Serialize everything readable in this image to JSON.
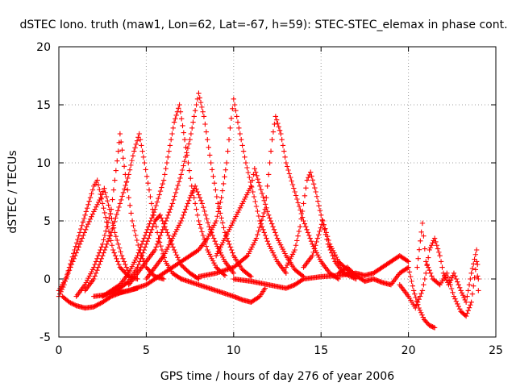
{
  "chart_data": {
    "type": "scatter",
    "title": "dSTEC Iono. truth (maw1, Lon=62, Lat=-67, h=59): STEC-STEC_elemax in phase cont.",
    "xlabel": "GPS time / hours of day 276 of year 2006",
    "ylabel": "dSTEC  / TECUs",
    "xlim": [
      0,
      25
    ],
    "ylim": [
      -5,
      20
    ],
    "xticks": [
      0,
      5,
      10,
      15,
      20,
      25
    ],
    "yticks": [
      -5,
      0,
      5,
      10,
      15,
      20
    ],
    "grid": true,
    "marker": "plus",
    "color": "#ff0000",
    "series": [
      {
        "values": [
          [
            0.0,
            -1.5
          ],
          [
            0.3,
            -0.5
          ],
          [
            0.6,
            1.0
          ],
          [
            0.9,
            2.5
          ],
          [
            1.2,
            4.0
          ],
          [
            1.5,
            5.5
          ],
          [
            1.8,
            7.0
          ],
          [
            2.0,
            8.0
          ],
          [
            2.2,
            8.5
          ],
          [
            2.5,
            6.5
          ],
          [
            2.8,
            4.5
          ],
          [
            3.1,
            2.5
          ],
          [
            3.5,
            1.0
          ],
          [
            4.0,
            0.2
          ],
          [
            4.5,
            0.0
          ]
        ]
      },
      {
        "values": [
          [
            0.0,
            -1.0
          ],
          [
            0.4,
            0.0
          ],
          [
            0.8,
            1.5
          ],
          [
            1.2,
            3.0
          ],
          [
            1.6,
            4.5
          ],
          [
            2.0,
            5.8
          ],
          [
            2.4,
            7.0
          ],
          [
            2.6,
            7.8
          ],
          [
            2.9,
            6.0
          ],
          [
            3.2,
            4.0
          ],
          [
            3.6,
            2.0
          ],
          [
            4.0,
            0.5
          ]
        ]
      },
      {
        "values": [
          [
            0.2,
            -1.5
          ],
          [
            0.6,
            -2.0
          ],
          [
            1.0,
            -2.3
          ],
          [
            1.5,
            -2.5
          ],
          [
            2.0,
            -2.4
          ],
          [
            2.5,
            -2.0
          ],
          [
            3.0,
            -1.5
          ],
          [
            3.5,
            -1.2
          ],
          [
            4.0,
            -1.0
          ],
          [
            4.5,
            -0.8
          ]
        ]
      },
      {
        "values": [
          [
            1.0,
            -1.5
          ],
          [
            1.5,
            -0.5
          ],
          [
            2.0,
            1.0
          ],
          [
            2.5,
            3.0
          ],
          [
            3.0,
            6.0
          ],
          [
            3.2,
            8.5
          ],
          [
            3.4,
            11.0
          ],
          [
            3.5,
            12.5
          ],
          [
            3.8,
            9.0
          ],
          [
            4.2,
            5.0
          ],
          [
            4.6,
            2.5
          ],
          [
            5.0,
            1.0
          ],
          [
            5.5,
            0.2
          ],
          [
            6.0,
            0.0
          ]
        ]
      },
      {
        "values": [
          [
            1.5,
            -1.0
          ],
          [
            2.0,
            0.0
          ],
          [
            2.5,
            2.0
          ],
          [
            3.0,
            4.0
          ],
          [
            3.5,
            6.5
          ],
          [
            4.0,
            9.0
          ],
          [
            4.3,
            11.0
          ],
          [
            4.6,
            12.5
          ],
          [
            4.9,
            10.0
          ],
          [
            5.3,
            6.5
          ],
          [
            5.7,
            3.5
          ],
          [
            6.1,
            1.5
          ],
          [
            6.5,
            0.5
          ],
          [
            7.0,
            0.0
          ]
        ]
      },
      {
        "values": [
          [
            2.5,
            -1.5
          ],
          [
            3.0,
            -1.0
          ],
          [
            3.5,
            -0.5
          ],
          [
            4.0,
            0.5
          ],
          [
            4.5,
            2.0
          ],
          [
            5.0,
            4.0
          ],
          [
            5.5,
            6.0
          ],
          [
            6.0,
            8.5
          ],
          [
            6.3,
            11.0
          ],
          [
            6.6,
            13.5
          ],
          [
            6.9,
            15.0
          ],
          [
            7.2,
            12.0
          ],
          [
            7.6,
            8.0
          ],
          [
            8.0,
            5.0
          ],
          [
            8.5,
            2.5
          ],
          [
            9.0,
            1.0
          ],
          [
            9.5,
            0.3
          ]
        ]
      },
      {
        "values": [
          [
            3.0,
            -1.2
          ],
          [
            3.5,
            -0.8
          ],
          [
            4.0,
            -0.2
          ],
          [
            4.5,
            1.0
          ],
          [
            5.0,
            3.0
          ],
          [
            5.5,
            5.0
          ],
          [
            5.8,
            5.5
          ],
          [
            6.2,
            4.0
          ],
          [
            6.6,
            2.5
          ],
          [
            7.0,
            1.2
          ],
          [
            7.5,
            0.5
          ],
          [
            8.0,
            0.0
          ]
        ]
      },
      {
        "values": [
          [
            4.0,
            -0.5
          ],
          [
            4.5,
            0.5
          ],
          [
            5.0,
            1.5
          ],
          [
            5.5,
            2.5
          ],
          [
            6.0,
            4.5
          ],
          [
            6.5,
            6.5
          ],
          [
            7.0,
            9.0
          ],
          [
            7.5,
            12.0
          ],
          [
            7.8,
            14.5
          ],
          [
            8.0,
            16.0
          ],
          [
            8.3,
            14.0
          ],
          [
            8.7,
            10.0
          ],
          [
            9.1,
            6.5
          ],
          [
            9.5,
            4.0
          ],
          [
            10.0,
            2.0
          ],
          [
            10.5,
            0.8
          ],
          [
            11.0,
            0.2
          ]
        ]
      },
      {
        "values": [
          [
            5.0,
            0.0
          ],
          [
            5.5,
            1.0
          ],
          [
            6.0,
            2.0
          ],
          [
            6.5,
            3.5
          ],
          [
            7.0,
            5.0
          ],
          [
            7.5,
            7.0
          ],
          [
            7.8,
            8.0
          ],
          [
            8.2,
            6.5
          ],
          [
            8.6,
            4.5
          ],
          [
            9.0,
            3.0
          ],
          [
            9.5,
            1.5
          ],
          [
            10.0,
            0.5
          ]
        ]
      },
      {
        "values": [
          [
            2.0,
            -1.5
          ],
          [
            3.0,
            -1.3
          ],
          [
            4.0,
            -1.0
          ],
          [
            5.0,
            -0.5
          ],
          [
            6.0,
            0.5
          ],
          [
            7.0,
            1.5
          ],
          [
            8.0,
            2.5
          ],
          [
            8.5,
            3.5
          ],
          [
            9.0,
            5.0
          ],
          [
            9.3,
            7.0
          ],
          [
            9.6,
            10.0
          ],
          [
            9.8,
            13.0
          ],
          [
            10.0,
            15.5
          ],
          [
            10.3,
            13.0
          ],
          [
            10.7,
            10.0
          ],
          [
            11.1,
            7.5
          ],
          [
            11.5,
            5.0
          ],
          [
            12.0,
            3.0
          ],
          [
            12.5,
            1.5
          ],
          [
            13.0,
            0.5
          ]
        ]
      },
      {
        "values": [
          [
            9.0,
            2.0
          ],
          [
            9.5,
            3.5
          ],
          [
            10.0,
            5.0
          ],
          [
            10.5,
            6.5
          ],
          [
            11.0,
            8.0
          ],
          [
            11.2,
            9.5
          ],
          [
            11.5,
            8.0
          ],
          [
            12.0,
            5.5
          ],
          [
            12.5,
            3.5
          ],
          [
            13.0,
            2.0
          ],
          [
            13.5,
            0.8
          ],
          [
            14.0,
            0.2
          ]
        ]
      },
      {
        "values": [
          [
            8.0,
            0.2
          ],
          [
            9.0,
            0.5
          ],
          [
            10.0,
            1.0
          ],
          [
            10.8,
            2.0
          ],
          [
            11.3,
            3.5
          ],
          [
            11.8,
            6.0
          ],
          [
            12.0,
            9.0
          ],
          [
            12.2,
            12.0
          ],
          [
            12.4,
            14.0
          ],
          [
            12.7,
            12.5
          ],
          [
            13.0,
            10.0
          ],
          [
            13.5,
            7.5
          ],
          [
            14.0,
            5.0
          ],
          [
            14.5,
            3.0
          ],
          [
            15.0,
            1.5
          ],
          [
            15.5,
            0.5
          ],
          [
            16.0,
            0.0
          ]
        ]
      },
      {
        "values": [
          [
            13.0,
            1.0
          ],
          [
            13.5,
            2.5
          ],
          [
            13.8,
            4.5
          ],
          [
            14.0,
            6.5
          ],
          [
            14.2,
            8.5
          ],
          [
            14.4,
            9.2
          ],
          [
            14.7,
            7.5
          ],
          [
            15.0,
            5.5
          ],
          [
            15.4,
            3.0
          ],
          [
            15.8,
            1.5
          ],
          [
            16.3,
            0.5
          ],
          [
            17.0,
            0.0
          ]
        ]
      },
      {
        "values": [
          [
            14.0,
            1.0
          ],
          [
            14.5,
            2.0
          ],
          [
            14.8,
            3.5
          ],
          [
            15.1,
            5.0
          ],
          [
            15.5,
            3.0
          ],
          [
            16.0,
            1.5
          ],
          [
            16.5,
            0.8
          ],
          [
            17.0,
            0.2
          ]
        ]
      },
      {
        "values": [
          [
            7.0,
            0.0
          ],
          [
            8.0,
            -0.5
          ],
          [
            9.0,
            -1.0
          ],
          [
            10.0,
            -1.5
          ],
          [
            10.5,
            -1.8
          ],
          [
            11.0,
            -2.0
          ],
          [
            11.5,
            -1.5
          ],
          [
            11.8,
            -0.8
          ]
        ]
      },
      {
        "values": [
          [
            10.0,
            0.0
          ],
          [
            11.0,
            -0.2
          ],
          [
            12.0,
            -0.5
          ],
          [
            13.0,
            -0.8
          ],
          [
            13.5,
            -0.5
          ],
          [
            14.0,
            0.0
          ],
          [
            15.0,
            0.2
          ],
          [
            16.0,
            0.3
          ],
          [
            17.0,
            0.5
          ],
          [
            17.5,
            0.3
          ],
          [
            18.0,
            0.5
          ],
          [
            18.5,
            1.0
          ],
          [
            19.0,
            1.5
          ],
          [
            19.5,
            2.0
          ],
          [
            20.0,
            1.5
          ]
        ]
      },
      {
        "values": [
          [
            16.0,
            0.5
          ],
          [
            16.5,
            1.0
          ],
          [
            17.0,
            0.3
          ],
          [
            17.5,
            -0.2
          ],
          [
            18.0,
            0.0
          ],
          [
            18.5,
            -0.3
          ],
          [
            19.0,
            -0.5
          ],
          [
            19.5,
            0.5
          ],
          [
            20.0,
            1.0
          ],
          [
            20.3,
            -1.0
          ],
          [
            20.6,
            -2.5
          ],
          [
            20.9,
            -3.5
          ],
          [
            21.2,
            -4.0
          ],
          [
            21.5,
            -4.2
          ]
        ]
      },
      {
        "values": [
          [
            19.5,
            -0.5
          ],
          [
            20.0,
            -1.5
          ],
          [
            20.4,
            -2.5
          ],
          [
            20.8,
            -1.0
          ],
          [
            21.0,
            0.5
          ],
          [
            21.2,
            2.5
          ],
          [
            21.5,
            3.5
          ],
          [
            21.8,
            2.0
          ],
          [
            22.0,
            0.5
          ],
          [
            22.3,
            -0.5
          ],
          [
            22.6,
            0.5
          ],
          [
            23.0,
            -1.0
          ],
          [
            23.3,
            -2.0
          ],
          [
            23.6,
            0.5
          ],
          [
            23.9,
            2.5
          ],
          [
            24.0,
            0.0
          ]
        ]
      },
      {
        "values": [
          [
            20.5,
            1.0
          ],
          [
            20.8,
            4.8
          ],
          [
            21.0,
            1.5
          ],
          [
            21.4,
            0.0
          ],
          [
            21.8,
            -0.5
          ],
          [
            22.2,
            0.5
          ],
          [
            22.6,
            -1.5
          ],
          [
            23.0,
            -2.8
          ],
          [
            23.3,
            -3.2
          ],
          [
            23.6,
            -2.0
          ],
          [
            23.9,
            1.5
          ],
          [
            24.0,
            -1.0
          ]
        ]
      }
    ]
  }
}
